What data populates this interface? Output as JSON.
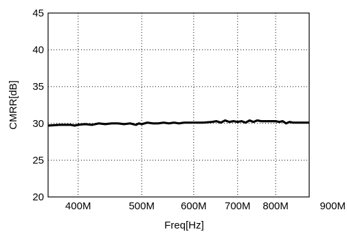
{
  "chart_data": {
    "type": "line",
    "title": "",
    "xlabel": "Freq[Hz]",
    "ylabel": "CMRR[dB]",
    "x_scale": "log",
    "xlim": [
      360,
      900
    ],
    "ylim": [
      20,
      45
    ],
    "grid": true,
    "x_ticks": [
      {
        "value": 400,
        "label": "400M"
      },
      {
        "value": 500,
        "label": "500M"
      },
      {
        "value": 600,
        "label": "600M"
      },
      {
        "value": 700,
        "label": "700M"
      },
      {
        "value": 800,
        "label": "800M"
      },
      {
        "value": 900,
        "label": "900M"
      }
    ],
    "y_ticks": [
      {
        "value": 20,
        "label": "20"
      },
      {
        "value": 25,
        "label": "25"
      },
      {
        "value": 30,
        "label": "30"
      },
      {
        "value": 35,
        "label": "35"
      },
      {
        "value": 40,
        "label": "40"
      },
      {
        "value": 45,
        "label": "45"
      }
    ],
    "series": [
      {
        "color": "#000000",
        "x": [
          360,
          375,
          390,
          395,
          400,
          410,
          420,
          430,
          440,
          450,
          460,
          470,
          480,
          490,
          495,
          500,
          510,
          520,
          530,
          540,
          550,
          560,
          570,
          580,
          600,
          620,
          640,
          650,
          660,
          670,
          680,
          690,
          700,
          710,
          720,
          730,
          740,
          750,
          760,
          780,
          800,
          810,
          820,
          830,
          840,
          850,
          870,
          900
        ],
        "y": [
          29.7,
          29.8,
          29.8,
          29.7,
          29.8,
          29.9,
          29.8,
          30.0,
          29.9,
          30.0,
          30.0,
          29.9,
          30.0,
          29.8,
          30.0,
          29.9,
          30.1,
          30.0,
          30.0,
          30.1,
          30.0,
          30.1,
          30.0,
          30.1,
          30.1,
          30.1,
          30.2,
          30.3,
          30.1,
          30.4,
          30.2,
          30.3,
          30.2,
          30.3,
          30.1,
          30.4,
          30.2,
          30.4,
          30.3,
          30.3,
          30.3,
          30.2,
          30.3,
          30.0,
          30.2,
          30.1,
          30.1,
          30.1
        ]
      }
    ]
  }
}
